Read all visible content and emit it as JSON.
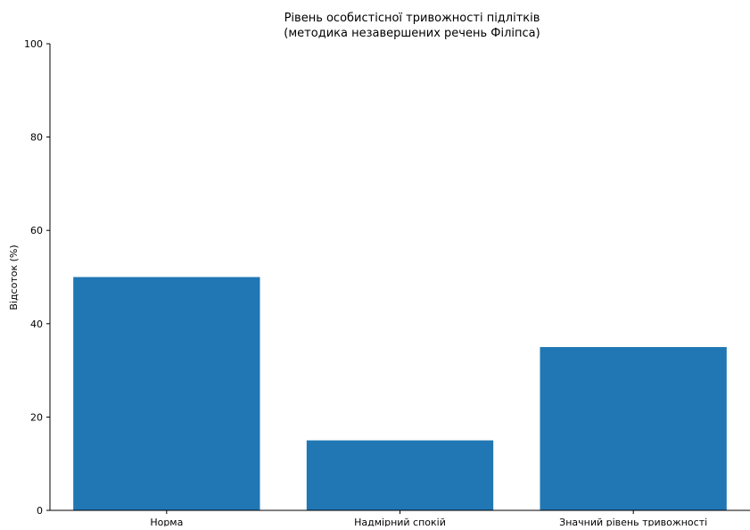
{
  "chart_data": {
    "type": "bar",
    "title": "Рівень особистісної тривожності підлітків",
    "subtitle": "(методика незавершених речень Філіпса)",
    "xlabel": "",
    "ylabel": "Відсоток (%)",
    "categories": [
      "Норма",
      "Надмірний спокій",
      "Значний рівень тривожності"
    ],
    "values": [
      50,
      15,
      35
    ],
    "ylim": [
      0,
      100
    ],
    "yticks": [
      0,
      20,
      40,
      60,
      80,
      100
    ],
    "grid": false,
    "legend": "none",
    "bar_color": "#2077b4"
  }
}
